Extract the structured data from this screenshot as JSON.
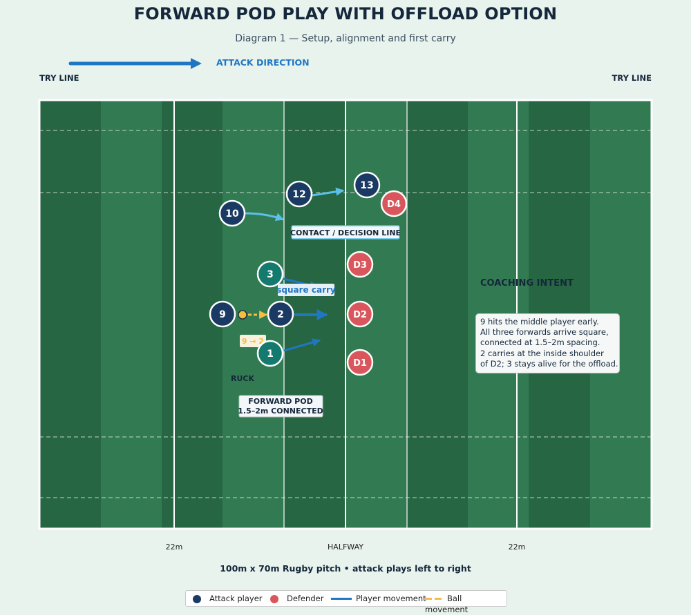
{
  "title": "FORWARD POD PLAY WITH OFFLOAD OPTION",
  "subtitle": "Diagram 1 — Setup, alignment and first carry",
  "attack_direction": "ATTACK DIRECTION",
  "try_line_left": "TRY LINE",
  "try_line_right": "TRY LINE",
  "axis_labels": {
    "left_22": "22m",
    "halfway": "HALFWAY",
    "right_22": "22m"
  },
  "caption": "100m x 70m Rugby pitch • attack plays left to right",
  "players": {
    "attack": [
      "13",
      "12",
      "10",
      "3",
      "9",
      "2",
      "1"
    ],
    "defenders": [
      "D4",
      "D3",
      "D2",
      "D1"
    ]
  },
  "annotations": {
    "contact_line": "CONTACT / DECISION LINE",
    "square_carry": "square carry",
    "pass": "9 → 2",
    "ruck": "RUCK",
    "pod_line1": "FORWARD POD",
    "pod_line2": "1.5–2m CONNECTED"
  },
  "coaching": {
    "title": "COACHING INTENT",
    "lines": [
      "9 hits the middle player early.",
      "All three forwards arrive square,",
      "connected at 1.5–2m spacing.",
      "2 carries at the inside shoulder",
      "of D2; 3 stays alive for the offload."
    ]
  },
  "legend": {
    "attack": "Attack player",
    "defender": "Defender",
    "player_movement": "Player movement",
    "ball_movement": "Ball movement"
  },
  "colors": {
    "attack": "#1b3a63",
    "forward": "#157a6e",
    "defender": "#d9575c",
    "player_move": "#1f77c4",
    "support_move": "#5bc0eb",
    "ball": "#f5be42",
    "pitch_dark": "#276642",
    "pitch_light": "#327b52"
  }
}
